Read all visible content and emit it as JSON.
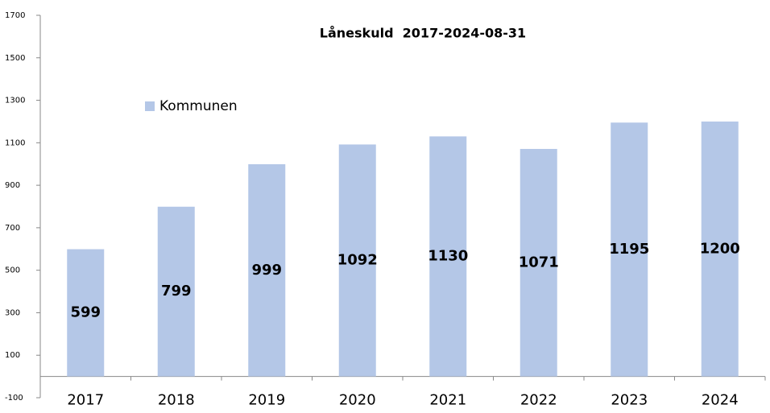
{
  "chart_data": {
    "type": "bar",
    "title": "Låneskuld  2017-2024-08-31",
    "categories": [
      "2017",
      "2018",
      "2019",
      "2020",
      "2021",
      "2022",
      "2023",
      "2024"
    ],
    "series": [
      {
        "name": "Kommunen",
        "color": "#b4c7e7",
        "values": [
          599,
          799,
          999,
          1092,
          1130,
          1071,
          1195,
          1200
        ]
      }
    ],
    "ylim": [
      -100,
      1700
    ],
    "yticks": [
      -100,
      100,
      300,
      500,
      700,
      900,
      1100,
      1300,
      1500,
      1700
    ],
    "grid": false,
    "legend": "top-left"
  }
}
